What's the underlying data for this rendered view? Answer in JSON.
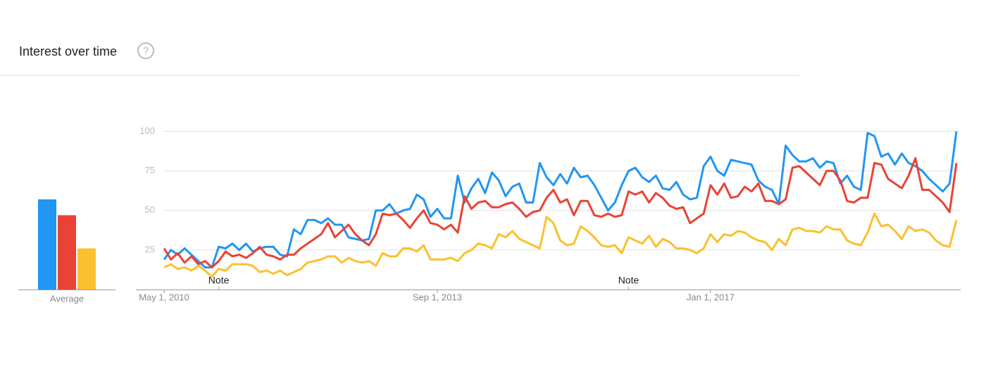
{
  "chart_data": {
    "type": "line",
    "title": "Interest over time",
    "help_icon": "?",
    "average_label": "Average",
    "averages": [
      57,
      47,
      26
    ],
    "x": [
      "May 1, 2010",
      "Jun 1, 2010",
      "Jul 1, 2010",
      "Aug 1, 2010",
      "Sep 1, 2010",
      "Oct 1, 2010",
      "Nov 1, 2010",
      "Dec 1, 2010",
      "Jan 1, 2011",
      "Feb 1, 2011",
      "Mar 1, 2011",
      "Apr 1, 2011",
      "May 1, 2011",
      "Jun 1, 2011",
      "Jul 1, 2011",
      "Aug 1, 2011",
      "Sep 1, 2011",
      "Oct 1, 2011",
      "Nov 1, 2011",
      "Dec 1, 2011",
      "Jan 1, 2012",
      "Feb 1, 2012",
      "Mar 1, 2012",
      "Apr 1, 2012",
      "May 1, 2012",
      "Jun 1, 2012",
      "Jul 1, 2012",
      "Aug 1, 2012",
      "Sep 1, 2012",
      "Oct 1, 2012",
      "Nov 1, 2012",
      "Dec 1, 2012",
      "Jan 1, 2013",
      "Feb 1, 2013",
      "Mar 1, 2013",
      "Apr 1, 2013",
      "May 1, 2013",
      "Jun 1, 2013",
      "Jul 1, 2013",
      "Aug 1, 2013",
      "Sep 1, 2013",
      "Oct 1, 2013",
      "Nov 1, 2013",
      "Dec 1, 2013",
      "Jan 1, 2014",
      "Feb 1, 2014",
      "Mar 1, 2014",
      "Apr 1, 2014",
      "May 1, 2014",
      "Jun 1, 2014",
      "Jul 1, 2014",
      "Aug 1, 2014",
      "Sep 1, 2014",
      "Oct 1, 2014",
      "Nov 1, 2014",
      "Dec 1, 2014",
      "Jan 1, 2015",
      "Feb 1, 2015",
      "Mar 1, 2015",
      "Apr 1, 2015",
      "May 1, 2015",
      "Jun 1, 2015",
      "Jul 1, 2015",
      "Aug 1, 2015",
      "Sep 1, 2015",
      "Oct 1, 2015",
      "Nov 1, 2015",
      "Dec 1, 2015",
      "Jan 1, 2016",
      "Feb 1, 2016",
      "Mar 1, 2016",
      "Apr 1, 2016",
      "May 1, 2016",
      "Jun 1, 2016",
      "Jul 1, 2016",
      "Aug 1, 2016",
      "Sep 1, 2016",
      "Oct 1, 2016",
      "Nov 1, 2016",
      "Dec 1, 2016",
      "Jan 1, 2017",
      "Feb 1, 2017",
      "Mar 1, 2017",
      "Apr 1, 2017",
      "May 1, 2017",
      "Jun 1, 2017",
      "Jul 1, 2017",
      "Aug 1, 2017",
      "Sep 1, 2017",
      "Oct 1, 2017",
      "Nov 1, 2017",
      "Dec 1, 2017",
      "Jan 1, 2018",
      "Feb 1, 2018",
      "Mar 1, 2018",
      "Apr 1, 2018",
      "May 1, 2018",
      "Jun 1, 2018",
      "Jul 1, 2018",
      "Aug 1, 2018",
      "Sep 1, 2018",
      "Oct 1, 2018",
      "Nov 1, 2018",
      "Dec 1, 2018",
      "Jan 1, 2019",
      "Feb 1, 2019",
      "Mar 1, 2019",
      "Apr 1, 2019",
      "May 1, 2019",
      "Jun 1, 2019",
      "Jul 1, 2019",
      "Aug 1, 2019",
      "Sep 1, 2019",
      "Oct 1, 2019",
      "Nov 1, 2019",
      "Dec 1, 2019",
      "Jan 1, 2020"
    ],
    "xticks": [
      "May 1, 2010",
      "Sep 1, 2013",
      "Jan 1, 2017"
    ],
    "annotations": [
      {
        "label": "Note",
        "x": "Jan 1, 2011"
      },
      {
        "label": "Note",
        "x": "Jan 1, 2016"
      }
    ],
    "ylim": [
      0,
      100
    ],
    "yticks": [
      25,
      50,
      75,
      100
    ],
    "grid": true,
    "series": [
      {
        "color": "#2196f3",
        "values": [
          19,
          25,
          22,
          26,
          22,
          18,
          14,
          14,
          27,
          26,
          29,
          25,
          29,
          24,
          26,
          27,
          27,
          22,
          21,
          38,
          35,
          44,
          44,
          42,
          45,
          41,
          41,
          33,
          32,
          31,
          32,
          50,
          50,
          54,
          48,
          50,
          51,
          60,
          57,
          46,
          51,
          45,
          45,
          72,
          55,
          64,
          70,
          61,
          74,
          69,
          59,
          65,
          67,
          55,
          55,
          80,
          71,
          66,
          73,
          67,
          77,
          71,
          72,
          66,
          58,
          50,
          55,
          66,
          75,
          77,
          71,
          68,
          72,
          64,
          63,
          68,
          60,
          57,
          58,
          78,
          84,
          75,
          72,
          82,
          81,
          80,
          79,
          69,
          65,
          63,
          54,
          91,
          85,
          81,
          81,
          83,
          77,
          81,
          80,
          67,
          72,
          65,
          63,
          99,
          97,
          84,
          86,
          79,
          86,
          80,
          78,
          75,
          70,
          66,
          62,
          67,
          100
        ]
      },
      {
        "color": "#ea4335",
        "values": [
          26,
          19,
          23,
          17,
          21,
          16,
          18,
          14,
          18,
          24,
          21,
          22,
          20,
          23,
          27,
          22,
          21,
          19,
          22,
          22,
          26,
          29,
          32,
          35,
          42,
          33,
          37,
          41,
          35,
          31,
          28,
          35,
          48,
          47,
          48,
          44,
          39,
          45,
          50,
          42,
          41,
          38,
          41,
          36,
          59,
          51,
          55,
          56,
          52,
          52,
          54,
          55,
          51,
          46,
          49,
          50,
          58,
          63,
          55,
          57,
          47,
          56,
          56,
          47,
          46,
          48,
          46,
          47,
          62,
          60,
          62,
          55,
          61,
          58,
          53,
          51,
          52,
          42,
          45,
          48,
          66,
          60,
          67,
          58,
          59,
          65,
          62,
          67,
          56,
          56,
          54,
          57,
          77,
          78,
          74,
          70,
          66,
          75,
          75,
          69,
          56,
          55,
          58,
          58,
          80,
          79,
          70,
          67,
          64,
          72,
          83,
          63,
          63,
          59,
          55,
          49,
          80
        ]
      },
      {
        "color": "#fbc02d",
        "values": [
          14,
          16,
          13,
          14,
          12,
          15,
          12,
          8,
          13,
          12,
          16,
          16,
          16,
          15,
          11,
          12,
          10,
          12,
          9,
          11,
          13,
          17,
          18,
          19,
          21,
          21,
          17,
          20,
          18,
          17,
          18,
          15,
          23,
          21,
          21,
          26,
          26,
          24,
          28,
          19,
          19,
          19,
          20,
          18,
          23,
          25,
          29,
          28,
          26,
          35,
          33,
          37,
          32,
          30,
          28,
          26,
          46,
          42,
          31,
          28,
          29,
          40,
          37,
          33,
          28,
          27,
          28,
          23,
          33,
          31,
          29,
          34,
          27,
          32,
          30,
          26,
          26,
          25,
          23,
          26,
          35,
          30,
          35,
          34,
          37,
          36,
          33,
          31,
          30,
          25,
          32,
          28,
          38,
          39,
          37,
          37,
          36,
          40,
          38,
          38,
          31,
          29,
          28,
          36,
          48,
          40,
          41,
          37,
          32,
          40,
          37,
          38,
          36,
          31,
          28,
          27,
          44
        ]
      }
    ]
  }
}
